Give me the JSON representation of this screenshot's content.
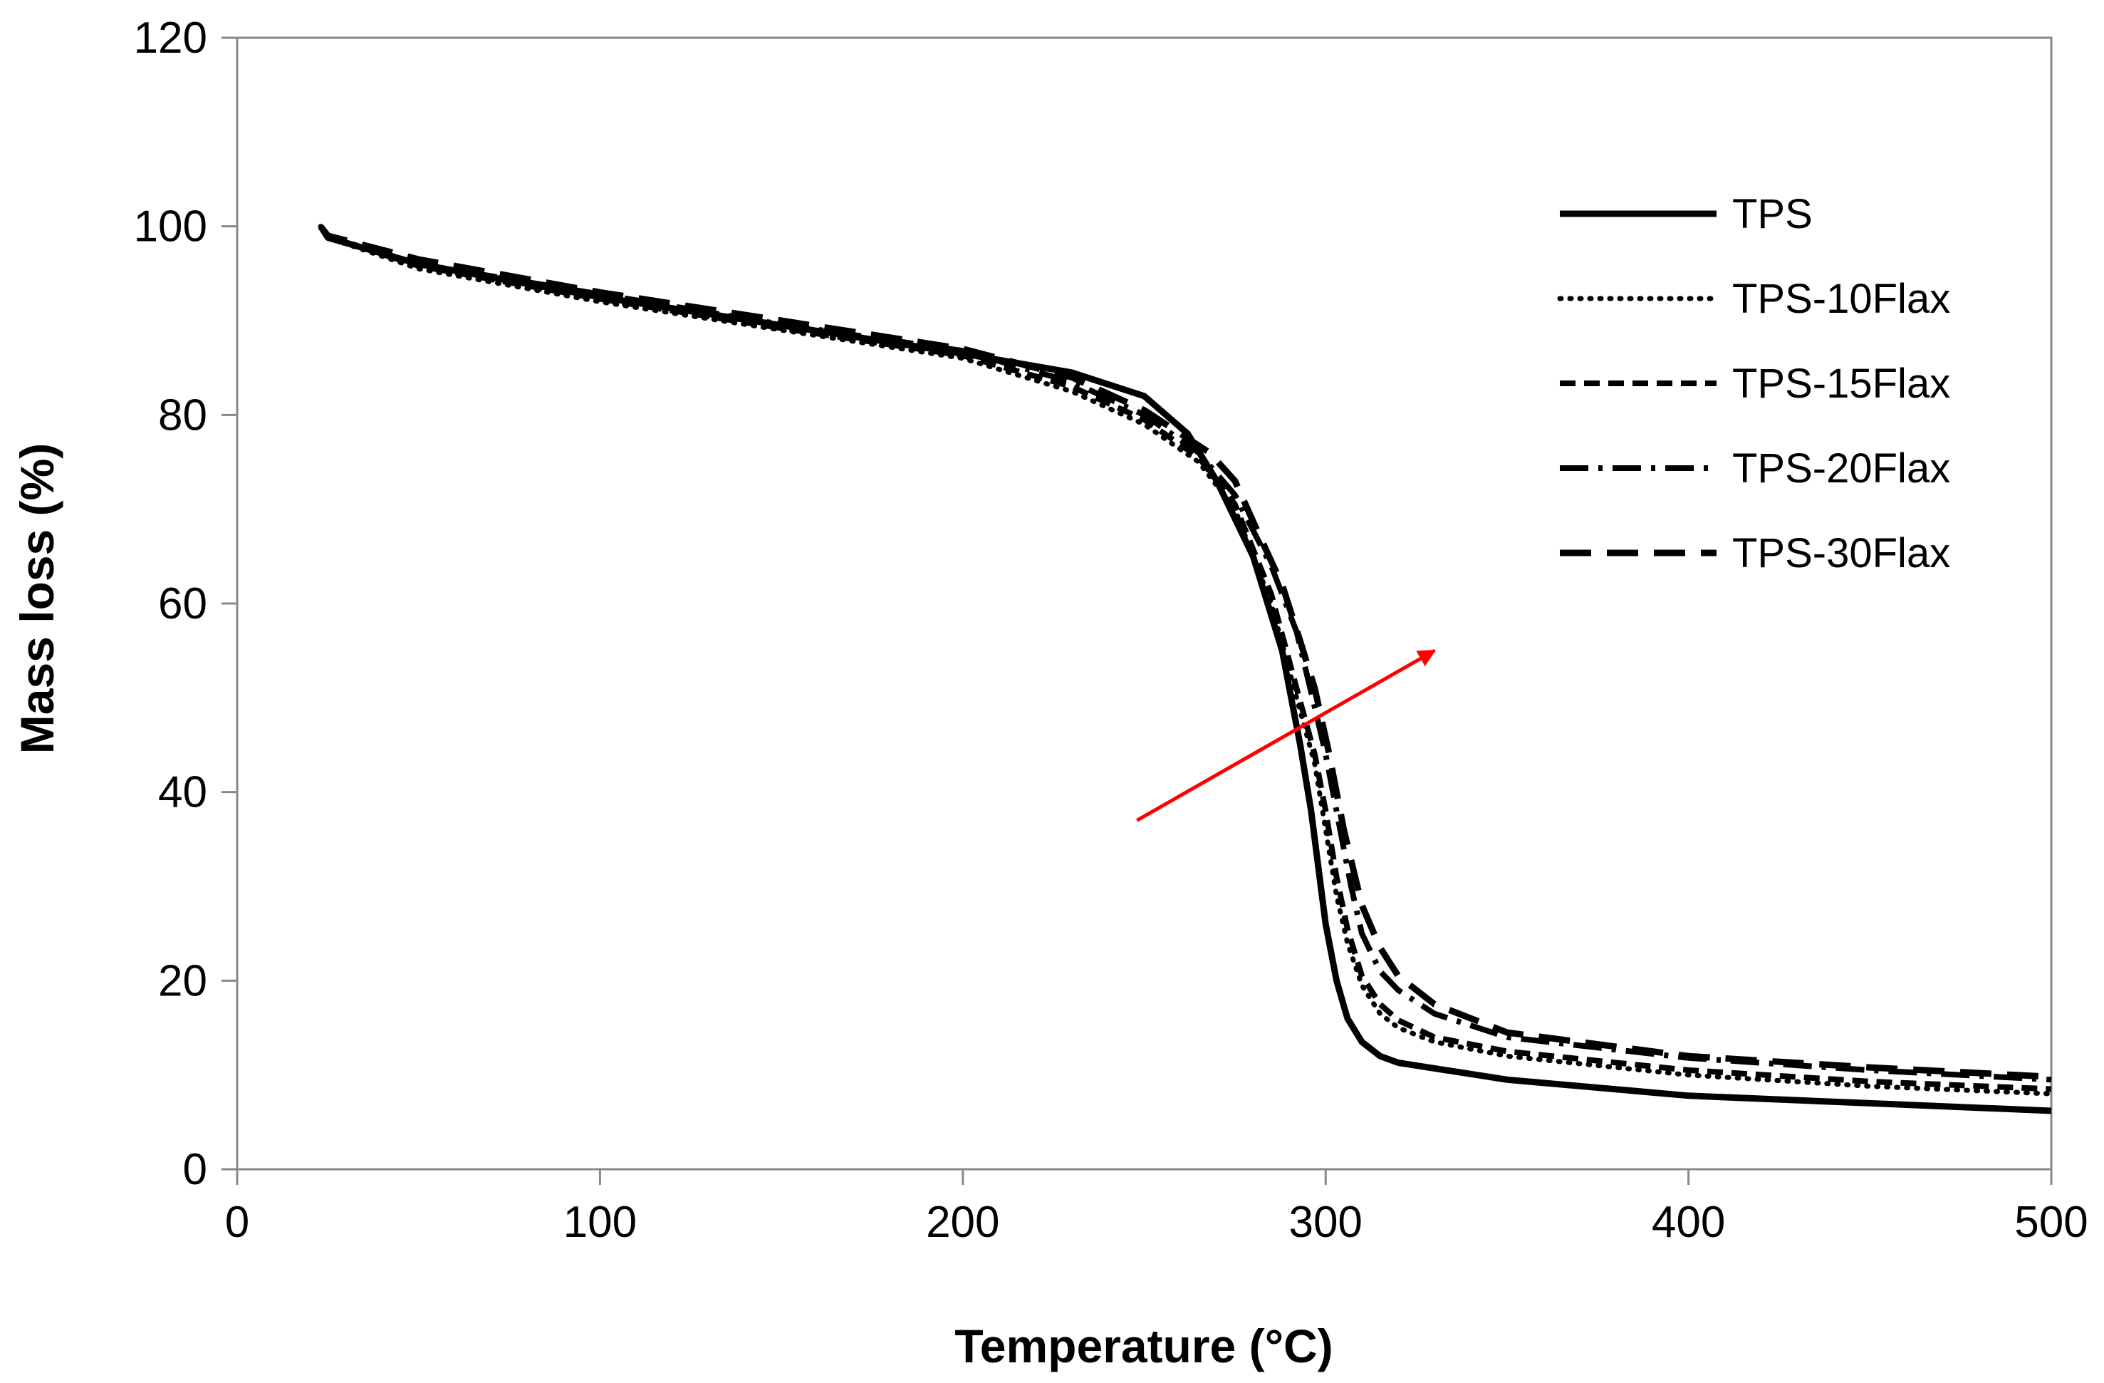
{
  "chart_data": {
    "type": "line",
    "title": "",
    "xlabel": "Temperature (°C)",
    "ylabel": "Mass loss (%)",
    "xlim": [
      0,
      500
    ],
    "ylim": [
      0,
      120
    ],
    "xticks": [
      0,
      100,
      200,
      300,
      400,
      500
    ],
    "yticks": [
      0,
      20,
      40,
      60,
      80,
      100,
      120
    ],
    "x_tick_labels": [
      "0",
      "100",
      "200",
      "300",
      "400",
      "500"
    ],
    "y_tick_labels": [
      "0",
      "20",
      "40",
      "60",
      "80",
      "100",
      "120"
    ],
    "grid": false,
    "legend_position": "top-right",
    "series": [
      {
        "name": "TPS",
        "style": "solid",
        "x": [
          23,
          25,
          50,
          100,
          150,
          200,
          230,
          250,
          262,
          270,
          280,
          288,
          293,
          296,
          298,
          300,
          303,
          306,
          310,
          315,
          320,
          350,
          400,
          450,
          500
        ],
        "y": [
          100,
          98.8,
          96,
          92.5,
          89.5,
          86.5,
          84.5,
          82,
          78,
          73,
          65,
          55,
          45,
          38,
          32,
          26,
          20,
          16,
          13.5,
          12,
          11.3,
          9.5,
          7.8,
          7,
          6.2
        ]
      },
      {
        "name": "TPS-10Flax",
        "style": "dotted",
        "x": [
          23,
          25,
          50,
          100,
          150,
          200,
          230,
          250,
          265,
          275,
          285,
          292,
          297,
          300,
          303,
          306,
          310,
          315,
          320,
          330,
          350,
          400,
          450,
          500
        ],
        "y": [
          100,
          98.8,
          95.5,
          92,
          89,
          86,
          82.5,
          79,
          75,
          70,
          60,
          50,
          43,
          36,
          29,
          24,
          19.5,
          16.5,
          15,
          13.5,
          12,
          10,
          8.8,
          8
        ]
      },
      {
        "name": "TPS-15Flax",
        "style": "short-dash",
        "x": [
          23,
          25,
          50,
          100,
          150,
          200,
          230,
          250,
          265,
          275,
          285,
          292,
          297,
          300,
          303,
          306,
          310,
          315,
          320,
          330,
          350,
          400,
          450,
          500
        ],
        "y": [
          100,
          98.9,
          95.8,
          92.3,
          89.2,
          86.3,
          83,
          79.5,
          75.5,
          70.5,
          61,
          51,
          44,
          38,
          31,
          25.5,
          20.5,
          17.5,
          15.8,
          14,
          12.5,
          10.5,
          9.3,
          8.5
        ]
      },
      {
        "name": "TPS-20Flax",
        "style": "dash-dot",
        "x": [
          23,
          25,
          50,
          100,
          150,
          200,
          230,
          250,
          265,
          275,
          285,
          292,
          297,
          300,
          303,
          307,
          310,
          315,
          320,
          330,
          350,
          400,
          450,
          500
        ],
        "y": [
          100,
          98.9,
          96,
          92.8,
          89.6,
          86.8,
          83.5,
          80,
          76,
          71.5,
          64,
          57,
          49,
          44,
          38,
          30,
          25,
          21,
          19,
          16.5,
          14,
          11.8,
          10.5,
          9.5
        ]
      },
      {
        "name": "TPS-30Flax",
        "style": "long-dash",
        "x": [
          23,
          25,
          50,
          100,
          150,
          200,
          230,
          250,
          260,
          268,
          275,
          282,
          288,
          293,
          297,
          301,
          305,
          310,
          315,
          320,
          330,
          350,
          400,
          450,
          500
        ],
        "y": [
          100,
          99,
          96.5,
          93,
          90,
          87,
          84,
          80.5,
          78,
          76,
          73,
          67,
          62,
          56,
          51,
          44,
          36,
          28,
          23.5,
          20.5,
          17.5,
          14.5,
          12,
          10.8,
          9.8
        ]
      }
    ],
    "annotations": [
      {
        "type": "arrow",
        "color": "#ff0000",
        "from": [
          248,
          37
        ],
        "to": [
          330,
          55
        ]
      }
    ]
  }
}
